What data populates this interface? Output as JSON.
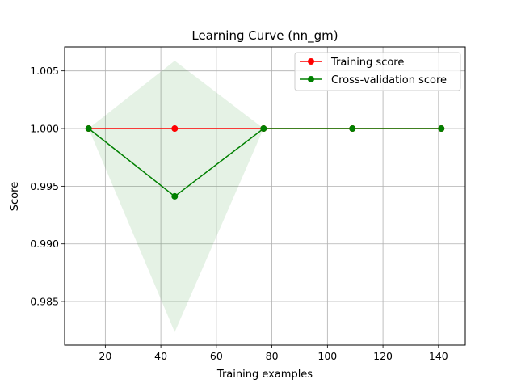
{
  "chart_data": {
    "type": "line",
    "title": "Learning Curve (nn_gm)",
    "xlabel": "Training examples",
    "ylabel": "Score",
    "xlim": [
      5.35,
      149.65
    ],
    "ylim": [
      0.98122,
      1.00708
    ],
    "xticks": [
      20,
      40,
      60,
      80,
      100,
      120,
      140
    ],
    "yticks": [
      0.985,
      0.99,
      0.995,
      1.0,
      1.005
    ],
    "xtick_labels": [
      "20",
      "40",
      "60",
      "80",
      "100",
      "120",
      "140"
    ],
    "ytick_labels": [
      "0.985",
      "0.990",
      "0.995",
      "1.000",
      "1.005"
    ],
    "grid": true,
    "legend": "upper-right",
    "x": [
      14,
      45,
      77,
      109,
      141
    ],
    "series": [
      {
        "name": "Training score",
        "color": "#ff0000",
        "values": [
          1.0,
          1.0,
          1.0,
          1.0,
          1.0
        ],
        "band_low": [
          1.0,
          1.0,
          1.0,
          1.0,
          1.0
        ],
        "band_high": [
          1.0,
          1.0,
          1.0,
          1.0,
          1.0
        ]
      },
      {
        "name": "Cross-validation score",
        "color": "#008000",
        "values": [
          1.0,
          0.99412,
          1.0,
          1.0,
          1.0
        ],
        "band_low": [
          1.0,
          0.98235,
          1.0,
          1.0,
          1.0
        ],
        "band_high": [
          1.0,
          1.00588,
          1.0,
          1.0,
          1.0
        ]
      }
    ]
  }
}
